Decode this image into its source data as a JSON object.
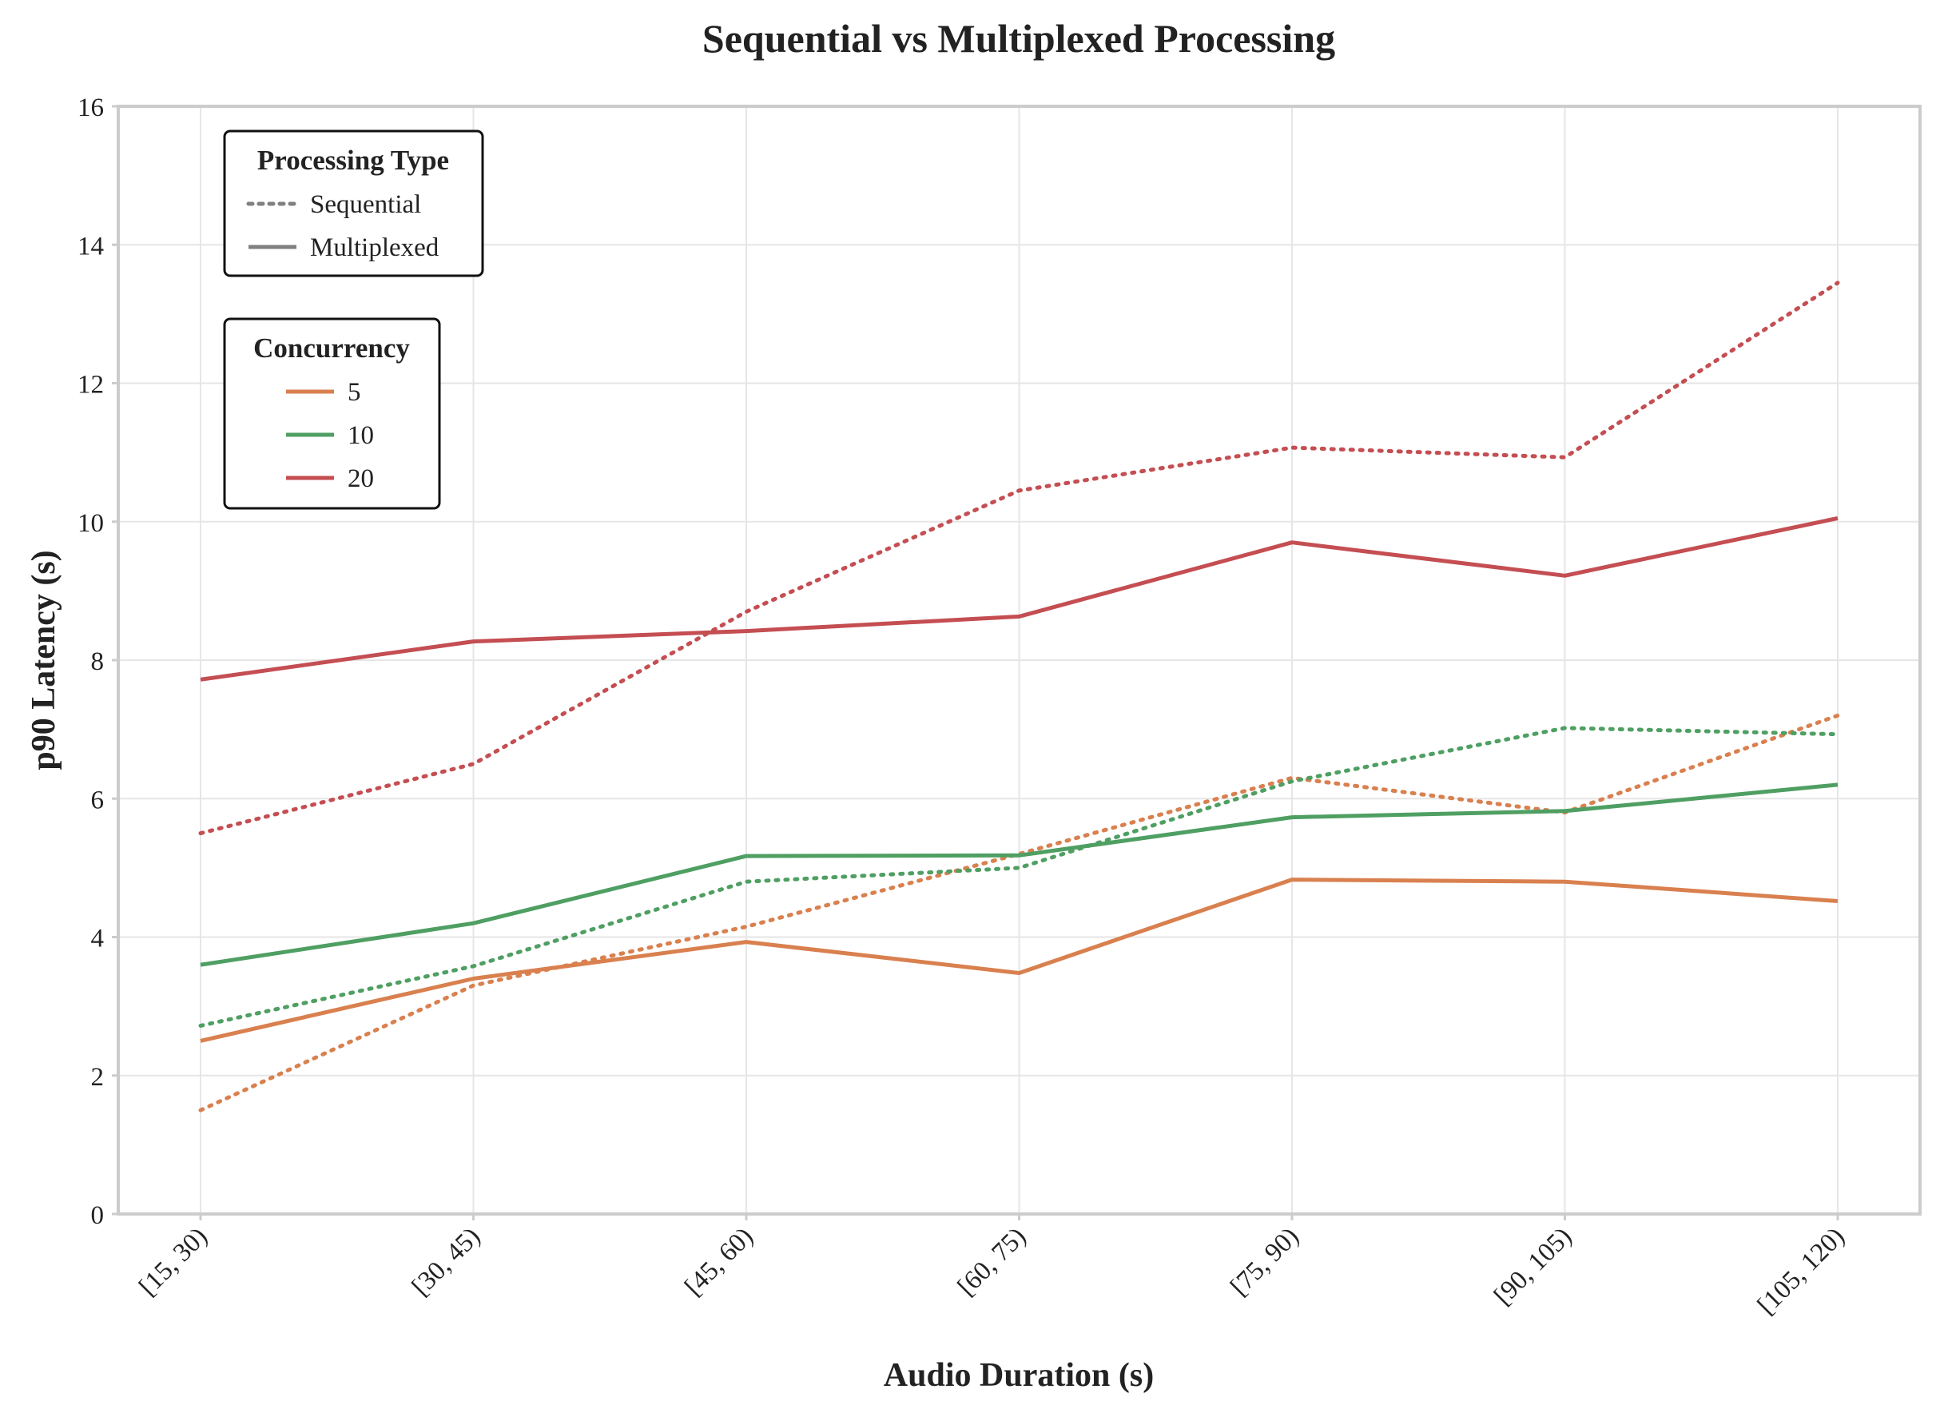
{
  "chart_data": {
    "type": "line",
    "title": "Sequential vs Multiplexed Processing",
    "xlabel": "Audio Duration (s)",
    "ylabel": "p90 Latency (s)",
    "categories": [
      "[15, 30)",
      "[30, 45)",
      "[45, 60)",
      "[60, 75)",
      "[75, 90)",
      "[90, 105)",
      "[105, 120)"
    ],
    "ylim": [
      0,
      16
    ],
    "yticks": [
      0,
      2,
      4,
      6,
      8,
      10,
      12,
      14,
      16
    ],
    "grid": true,
    "legends": [
      {
        "title": "Processing Type",
        "placement": "top-left",
        "entries": [
          {
            "label": "Sequential",
            "style": "dotted",
            "color": "#808080"
          },
          {
            "label": "Multiplexed",
            "style": "solid",
            "color": "#808080"
          }
        ]
      },
      {
        "title": "Concurrency",
        "placement": "upper-left",
        "entries": [
          {
            "label": "5",
            "style": "solid",
            "color": "#D9804F"
          },
          {
            "label": "10",
            "style": "solid",
            "color": "#4F9F63"
          },
          {
            "label": "20",
            "style": "solid",
            "color": "#C44E52"
          }
        ]
      }
    ],
    "series": [
      {
        "name": "5 Sequential",
        "concurrency": "5",
        "processing": "Sequential",
        "style": "dotted",
        "color": "#D9804F",
        "values": [
          1.5,
          3.3,
          4.15,
          5.2,
          6.3,
          5.8,
          7.2
        ]
      },
      {
        "name": "5 Multiplexed",
        "concurrency": "5",
        "processing": "Multiplexed",
        "style": "solid",
        "color": "#D9804F",
        "values": [
          2.5,
          3.4,
          3.93,
          3.48,
          4.83,
          4.8,
          4.52
        ]
      },
      {
        "name": "10 Sequential",
        "concurrency": "10",
        "processing": "Sequential",
        "style": "dotted",
        "color": "#4F9F63",
        "values": [
          2.72,
          3.58,
          4.8,
          5.0,
          6.25,
          7.02,
          6.93
        ]
      },
      {
        "name": "10 Multiplexed",
        "concurrency": "10",
        "processing": "Multiplexed",
        "style": "solid",
        "color": "#4F9F63",
        "values": [
          3.6,
          4.2,
          5.17,
          5.18,
          5.73,
          5.82,
          6.2
        ]
      },
      {
        "name": "20 Sequential",
        "concurrency": "20",
        "processing": "Sequential",
        "style": "dotted",
        "color": "#C44E52",
        "values": [
          5.5,
          6.5,
          8.7,
          10.45,
          11.07,
          10.93,
          13.45
        ]
      },
      {
        "name": "20 Multiplexed",
        "concurrency": "20",
        "processing": "Multiplexed",
        "style": "solid",
        "color": "#C44E52",
        "values": [
          7.72,
          8.27,
          8.42,
          8.63,
          9.7,
          9.22,
          10.05
        ]
      }
    ]
  }
}
